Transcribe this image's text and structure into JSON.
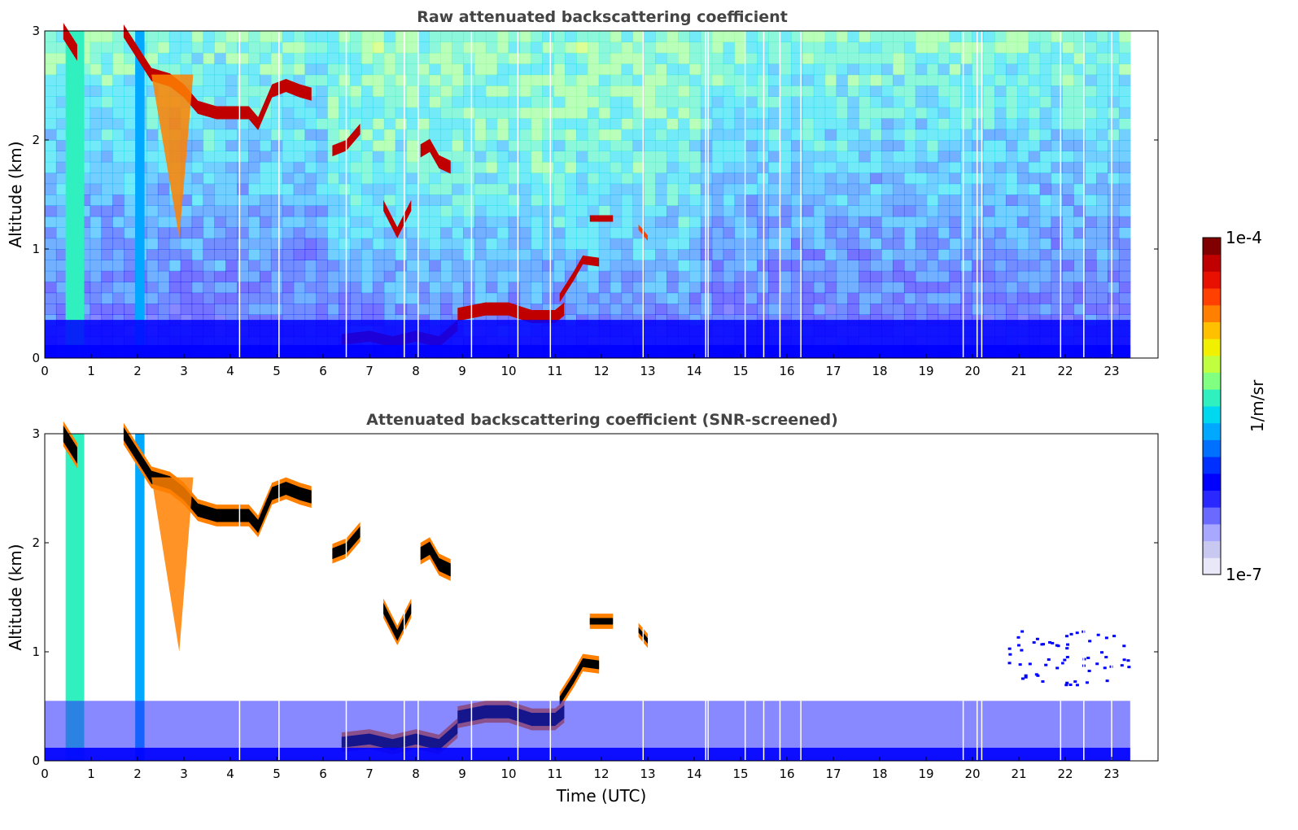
{
  "chart_data": [
    {
      "type": "heatmap",
      "title": "Raw attenuated backscattering coefficient",
      "xlabel": "",
      "ylabel": "Altitude (km)",
      "xlim": [
        0,
        24
      ],
      "ylim": [
        0,
        3
      ],
      "xticks": [
        "0",
        "1",
        "2",
        "3",
        "4",
        "5",
        "6",
        "7",
        "8",
        "9",
        "10",
        "11",
        "12",
        "13",
        "14",
        "15",
        "16",
        "17",
        "18",
        "19",
        "20",
        "21",
        "22",
        "23"
      ],
      "yticks": [
        "0",
        "1",
        "2",
        "3"
      ],
      "data_end_time": 23.4,
      "screened": false,
      "features": [
        {
          "kind": "precip_column",
          "t0": 0.45,
          "t1": 0.85,
          "z_top": 3.0,
          "level": 0.55
        },
        {
          "kind": "precip_column",
          "t0": 1.95,
          "t1": 2.15,
          "z_top": 3.0,
          "level": 0.4
        },
        {
          "kind": "cloud_layer",
          "points": [
            [
              0.4,
              3.0
            ],
            [
              0.7,
              2.8
            ]
          ],
          "thick": 0.15,
          "level": 0.95
        },
        {
          "kind": "cloud_layer",
          "points": [
            [
              1.7,
              3.0
            ],
            [
              2.0,
              2.8
            ],
            [
              2.3,
              2.6
            ],
            [
              2.7,
              2.55
            ],
            [
              3.0,
              2.45
            ],
            [
              3.3,
              2.3
            ],
            [
              3.7,
              2.25
            ],
            [
              4.0,
              2.25
            ],
            [
              4.4,
              2.25
            ],
            [
              4.6,
              2.15
            ],
            [
              4.9,
              2.45
            ],
            [
              5.2,
              2.5
            ],
            [
              5.5,
              2.45
            ],
            [
              5.75,
              2.42
            ]
          ],
          "thick": 0.12,
          "level": 0.95
        },
        {
          "kind": "virga",
          "t0": 2.3,
          "t1": 3.2,
          "z_top": 2.6,
          "z_bot": 1.1,
          "level": 0.8
        },
        {
          "kind": "cloud_layer",
          "points": [
            [
              6.2,
              1.9
            ],
            [
              6.5,
              1.95
            ],
            [
              6.8,
              2.1
            ]
          ],
          "thick": 0.1,
          "level": 0.95
        },
        {
          "kind": "cloud_layer",
          "points": [
            [
              7.3,
              1.4
            ],
            [
              7.6,
              1.15
            ],
            [
              7.9,
              1.4
            ]
          ],
          "thick": 0.1,
          "level": 0.95
        },
        {
          "kind": "cloud_layer",
          "points": [
            [
              8.1,
              1.9
            ],
            [
              8.3,
              1.95
            ],
            [
              8.5,
              1.8
            ],
            [
              8.75,
              1.75
            ]
          ],
          "thick": 0.12,
          "level": 0.95
        },
        {
          "kind": "cloud_layer",
          "points": [
            [
              11.75,
              1.28
            ],
            [
              12.25,
              1.28
            ]
          ],
          "thick": 0.06,
          "level": 0.95
        },
        {
          "kind": "cloud_layer",
          "points": [
            [
              12.8,
              1.2
            ],
            [
              13.0,
              1.1
            ]
          ],
          "thick": 0.05,
          "level": 0.85
        },
        {
          "kind": "cloud_layer",
          "points": [
            [
              11.1,
              0.55
            ],
            [
              11.4,
              0.75
            ],
            [
              11.6,
              0.9
            ],
            [
              11.95,
              0.88
            ]
          ],
          "thick": 0.08,
          "level": 0.95
        },
        {
          "kind": "cloud_layer",
          "points": [
            [
              6.4,
              0.17
            ],
            [
              7.0,
              0.2
            ],
            [
              7.5,
              0.15
            ],
            [
              8.0,
              0.2
            ],
            [
              8.5,
              0.15
            ],
            [
              8.9,
              0.3
            ]
          ],
          "thick": 0.1,
          "level": 0.95
        },
        {
          "kind": "cloud_layer",
          "points": [
            [
              8.9,
              0.4
            ],
            [
              9.5,
              0.45
            ],
            [
              10.0,
              0.45
            ],
            [
              10.5,
              0.38
            ],
            [
              11.0,
              0.38
            ],
            [
              11.2,
              0.45
            ]
          ],
          "thick": 0.12,
          "level": 0.95
        },
        {
          "kind": "boundary_layer",
          "t0": 0.0,
          "t1": 23.4,
          "z_top": 0.35,
          "level": 0.25
        }
      ]
    },
    {
      "type": "heatmap",
      "title": "Attenuated backscattering coefficient (SNR-screened)",
      "xlabel": "Time (UTC)",
      "ylabel": "Altitude (km)",
      "xlim": [
        0,
        24
      ],
      "ylim": [
        0,
        3
      ],
      "xticks": [
        "0",
        "1",
        "2",
        "3",
        "4",
        "5",
        "6",
        "7",
        "8",
        "9",
        "10",
        "11",
        "12",
        "13",
        "14",
        "15",
        "16",
        "17",
        "18",
        "19",
        "20",
        "21",
        "22",
        "23"
      ],
      "yticks": [
        "0",
        "1",
        "2",
        "3"
      ],
      "data_end_time": 23.4,
      "screened": true,
      "features": [
        {
          "kind": "precip_column",
          "t0": 0.45,
          "t1": 0.85,
          "z_top": 3.0,
          "level": 0.55
        },
        {
          "kind": "precip_column",
          "t0": 1.95,
          "t1": 2.15,
          "z_top": 3.0,
          "level": 0.4
        },
        {
          "kind": "cloud_layer",
          "points": [
            [
              0.4,
              3.0
            ],
            [
              0.7,
              2.8
            ]
          ],
          "thick": 0.15,
          "level": 1.0
        },
        {
          "kind": "cloud_layer",
          "points": [
            [
              1.7,
              3.0
            ],
            [
              2.0,
              2.8
            ],
            [
              2.3,
              2.6
            ],
            [
              2.7,
              2.55
            ],
            [
              3.0,
              2.45
            ],
            [
              3.3,
              2.3
            ],
            [
              3.7,
              2.25
            ],
            [
              4.0,
              2.25
            ],
            [
              4.4,
              2.25
            ],
            [
              4.6,
              2.15
            ],
            [
              4.9,
              2.45
            ],
            [
              5.2,
              2.5
            ],
            [
              5.5,
              2.45
            ],
            [
              5.75,
              2.42
            ]
          ],
          "thick": 0.12,
          "level": 1.0
        },
        {
          "kind": "virga",
          "t0": 2.3,
          "t1": 3.2,
          "z_top": 2.6,
          "z_bot": 1.0,
          "level": 0.8
        },
        {
          "kind": "cloud_layer",
          "points": [
            [
              6.2,
              1.9
            ],
            [
              6.5,
              1.95
            ],
            [
              6.8,
              2.1
            ]
          ],
          "thick": 0.1,
          "level": 1.0
        },
        {
          "kind": "cloud_layer",
          "points": [
            [
              7.3,
              1.4
            ],
            [
              7.6,
              1.15
            ],
            [
              7.9,
              1.4
            ]
          ],
          "thick": 0.1,
          "level": 1.0
        },
        {
          "kind": "cloud_layer",
          "points": [
            [
              8.1,
              1.9
            ],
            [
              8.3,
              1.95
            ],
            [
              8.5,
              1.8
            ],
            [
              8.75,
              1.75
            ]
          ],
          "thick": 0.12,
          "level": 1.0
        },
        {
          "kind": "cloud_layer",
          "points": [
            [
              11.75,
              1.28
            ],
            [
              12.25,
              1.28
            ]
          ],
          "thick": 0.06,
          "level": 1.0
        },
        {
          "kind": "cloud_layer",
          "points": [
            [
              12.8,
              1.2
            ],
            [
              13.0,
              1.1
            ]
          ],
          "thick": 0.05,
          "level": 1.0
        },
        {
          "kind": "cloud_layer",
          "points": [
            [
              11.1,
              0.55
            ],
            [
              11.4,
              0.75
            ],
            [
              11.6,
              0.9
            ],
            [
              11.95,
              0.88
            ]
          ],
          "thick": 0.08,
          "level": 1.0
        },
        {
          "kind": "cloud_layer",
          "points": [
            [
              6.4,
              0.17
            ],
            [
              7.0,
              0.2
            ],
            [
              7.5,
              0.15
            ],
            [
              8.0,
              0.2
            ],
            [
              8.5,
              0.15
            ],
            [
              8.9,
              0.3
            ]
          ],
          "thick": 0.1,
          "level": 1.0
        },
        {
          "kind": "cloud_layer",
          "points": [
            [
              8.9,
              0.4
            ],
            [
              9.5,
              0.45
            ],
            [
              10.0,
              0.45
            ],
            [
              10.5,
              0.38
            ],
            [
              11.0,
              0.38
            ],
            [
              11.2,
              0.45
            ]
          ],
          "thick": 0.12,
          "level": 1.0
        },
        {
          "kind": "boundary_layer",
          "t0": 0.0,
          "t1": 23.4,
          "z_top": 0.55,
          "level": 0.2
        },
        {
          "kind": "scattered_aerosol",
          "t0": 20.5,
          "t1": 23.4,
          "z_bot": 0.7,
          "z_top": 1.2,
          "level": 0.25
        }
      ]
    }
  ],
  "colorbar": {
    "label": "1/m/sr",
    "min_label": "1e-7",
    "max_label": "1e-4",
    "scale": "log",
    "range": [
      1e-07,
      0.0001
    ],
    "saturated_color": "#000000",
    "colors": [
      "#e8e8f8",
      "#c8c8f0",
      "#a8a8ff",
      "#6a6aff",
      "#2828ff",
      "#0000ff",
      "#0030ff",
      "#0070ff",
      "#00a8ff",
      "#00d8f0",
      "#30f0c0",
      "#80ff80",
      "#c0ff40",
      "#f0f000",
      "#ffc000",
      "#ff8000",
      "#ff4000",
      "#e81000",
      "#c00000",
      "#800000"
    ]
  }
}
